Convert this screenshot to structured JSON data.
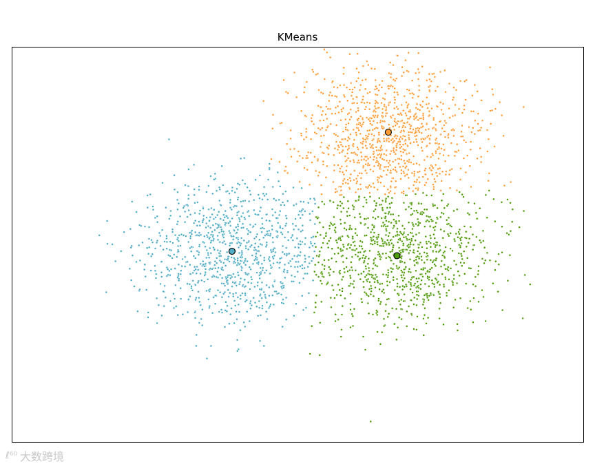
{
  "chart_data": {
    "type": "scatter",
    "title": "KMeans",
    "xlabel": "",
    "ylabel": "",
    "xticks": "none",
    "yticks": "none",
    "xlim": [
      -4.3,
      3.6
    ],
    "ylim": [
      -3.6,
      3.6
    ],
    "grid": false,
    "legend": "none",
    "series": [
      {
        "color": "#4eacc5",
        "point_count": 1000,
        "center": [
          -1.26,
          -0.12
        ],
        "spread": 0.65,
        "cluster_center": [
          -1.26,
          -0.12
        ]
      },
      {
        "color": "#ff9c34",
        "point_count": 1000,
        "center": [
          0.9,
          2.05
        ],
        "spread": 0.62,
        "cluster_center": [
          0.9,
          2.05
        ]
      },
      {
        "color": "#4e9a06",
        "point_count": 1000,
        "center": [
          1.02,
          -0.2
        ],
        "spread": 0.63,
        "cluster_center": [
          1.02,
          -0.2
        ]
      }
    ]
  },
  "watermark": {
    "logo": "ℓ⁶⁰",
    "text": "大数跨境"
  }
}
